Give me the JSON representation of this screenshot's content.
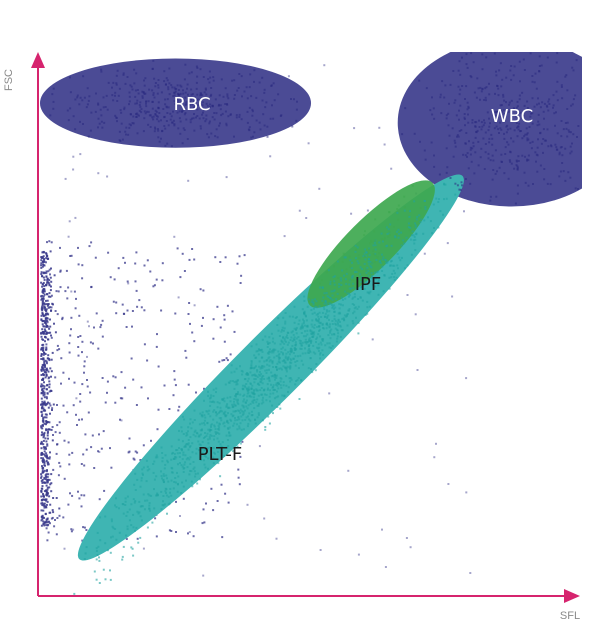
{
  "chart_data": {
    "type": "scatter",
    "title": "",
    "xlabel": "SFL",
    "ylabel": "FSC",
    "xlim": [
      0,
      1
    ],
    "ylim": [
      0,
      1
    ],
    "grid": false,
    "axis_color": "#d6246e",
    "populations": [
      {
        "name": "RBC",
        "label_color": "#ffffff",
        "fill": "#4b4b95",
        "dot": "#2a2a80",
        "cx": 0.25,
        "cy": 0.906,
        "rx": 0.25,
        "ry": 0.082,
        "angle": 0
      },
      {
        "name": "WBC",
        "label_color": "#ffffff",
        "fill": "#4b4b95",
        "dot": "#2a2a80",
        "cx": 0.87,
        "cy": 0.87,
        "rx": 0.21,
        "ry": 0.154,
        "angle": 0
      },
      {
        "name": "PLT-F",
        "label_color": "#1a1a1a",
        "fill": "#3fb5b3",
        "dot": "#1fa3a0",
        "cx": 0.426,
        "cy": 0.42,
        "rx": 0.5,
        "ry": 0.06,
        "angle": 45
      },
      {
        "name": "IPF",
        "label_color": "#1a1a1a",
        "fill": "#3ea84f",
        "dot": "#3ea84f",
        "cx": 0.611,
        "cy": 0.647,
        "rx": 0.16,
        "ry": 0.045,
        "angle": 45
      }
    ],
    "background_scatter_color": "#3a3a8c"
  }
}
